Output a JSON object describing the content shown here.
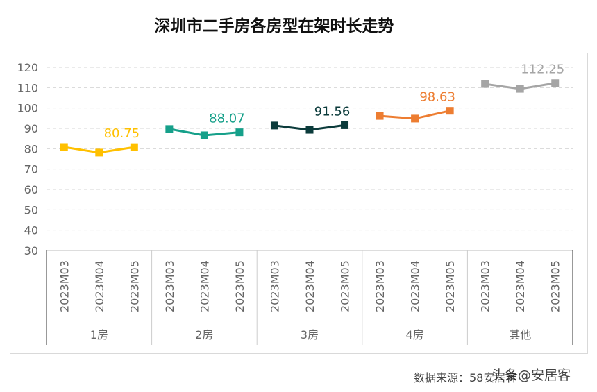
{
  "chart_data": {
    "type": "line",
    "title": "深圳市二手房各房型在架时长走势",
    "ylim": [
      30,
      120
    ],
    "yticks": [
      30,
      40,
      50,
      60,
      70,
      80,
      90,
      100,
      110,
      120
    ],
    "grid": true,
    "categories": [
      "2023M03",
      "2023M04",
      "2023M05"
    ],
    "series": [
      {
        "name": "1房",
        "values": [
          80.8,
          78.1,
          80.75
        ],
        "color": "#FFC000",
        "label": "80.75"
      },
      {
        "name": "2房",
        "values": [
          89.7,
          86.6,
          88.07
        ],
        "color": "#16A08A",
        "label": "88.07"
      },
      {
        "name": "3房",
        "values": [
          91.4,
          89.3,
          91.56
        ],
        "color": "#0B3B3B",
        "label": "91.56"
      },
      {
        "name": "4房",
        "values": [
          96.1,
          94.8,
          98.63
        ],
        "color": "#ED7D31",
        "label": "98.63"
      },
      {
        "name": "其他",
        "values": [
          111.8,
          109.4,
          112.25
        ],
        "color": "#A5A5A5",
        "label": "112.25"
      }
    ]
  },
  "source": "数据来源：58安居客",
  "watermark": "头条@安居客"
}
